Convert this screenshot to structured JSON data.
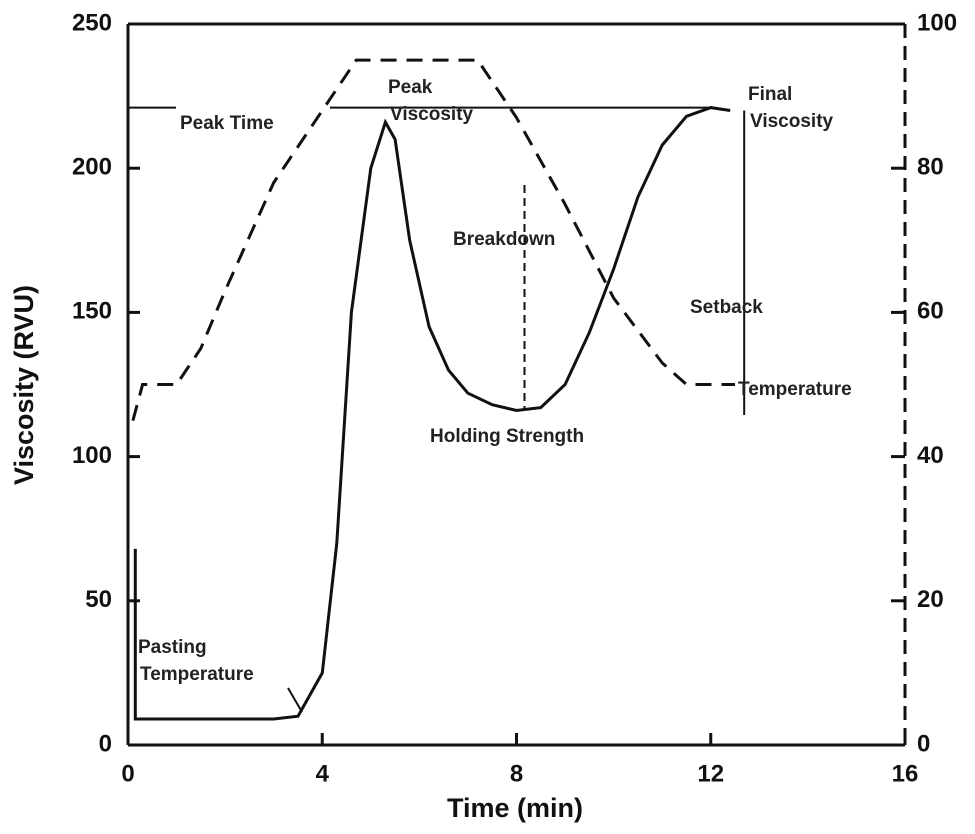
{
  "chart_data": {
    "type": "line",
    "x_label": "Time (min)",
    "y_label": "Viscosity (RVU)",
    "xlim": [
      0,
      16
    ],
    "xticks": [
      0,
      4,
      8,
      12,
      16
    ],
    "ylim": [
      0,
      250
    ],
    "yticks": [
      0,
      50,
      100,
      150,
      200,
      250
    ],
    "y2lim": [
      0,
      100
    ],
    "y2ticks": [
      0,
      20,
      40,
      60,
      80,
      100
    ],
    "series": [
      {
        "color": "#111111",
        "dash": false,
        "x": [
          0.15,
          0.15,
          0.25,
          1,
          2,
          3,
          3.5,
          4,
          4.3,
          4.6,
          5,
          5.3,
          5.5,
          5.8,
          6.2,
          6.6,
          7,
          7.5,
          8,
          8.5,
          9,
          9.5,
          10,
          10.5,
          11,
          11.5,
          12,
          12.4
        ],
        "values": [
          68,
          9,
          9,
          9,
          9,
          9,
          10,
          25,
          70,
          150,
          200,
          216,
          210,
          175,
          145,
          130,
          122,
          118,
          116,
          117,
          125,
          143,
          165,
          190,
          208,
          218,
          221,
          220
        ]
      },
      {
        "color": "#111111",
        "dash": true,
        "axis": "y2",
        "x": [
          0.1,
          0.3,
          1,
          1.5,
          2,
          3,
          4,
          4.7,
          7.2,
          8,
          9,
          10,
          11,
          11.5,
          12.5
        ],
        "values": [
          45,
          50,
          50,
          55,
          63,
          78,
          88,
          95,
          95,
          87,
          75,
          62,
          53,
          50,
          50
        ]
      }
    ],
    "annotations": [
      {
        "text": [
          "Peak Time"
        ]
      },
      {
        "text": [
          "Peak",
          "Viscosity"
        ]
      },
      {
        "text": [
          "Final",
          "Viscosity"
        ]
      },
      {
        "text": [
          "Breakdown"
        ]
      },
      {
        "text": [
          "Setback"
        ]
      },
      {
        "text": [
          "Temperature"
        ]
      },
      {
        "text": [
          "Holding Strength"
        ]
      },
      {
        "text": [
          "Pasting",
          "Temperature"
        ]
      }
    ]
  }
}
